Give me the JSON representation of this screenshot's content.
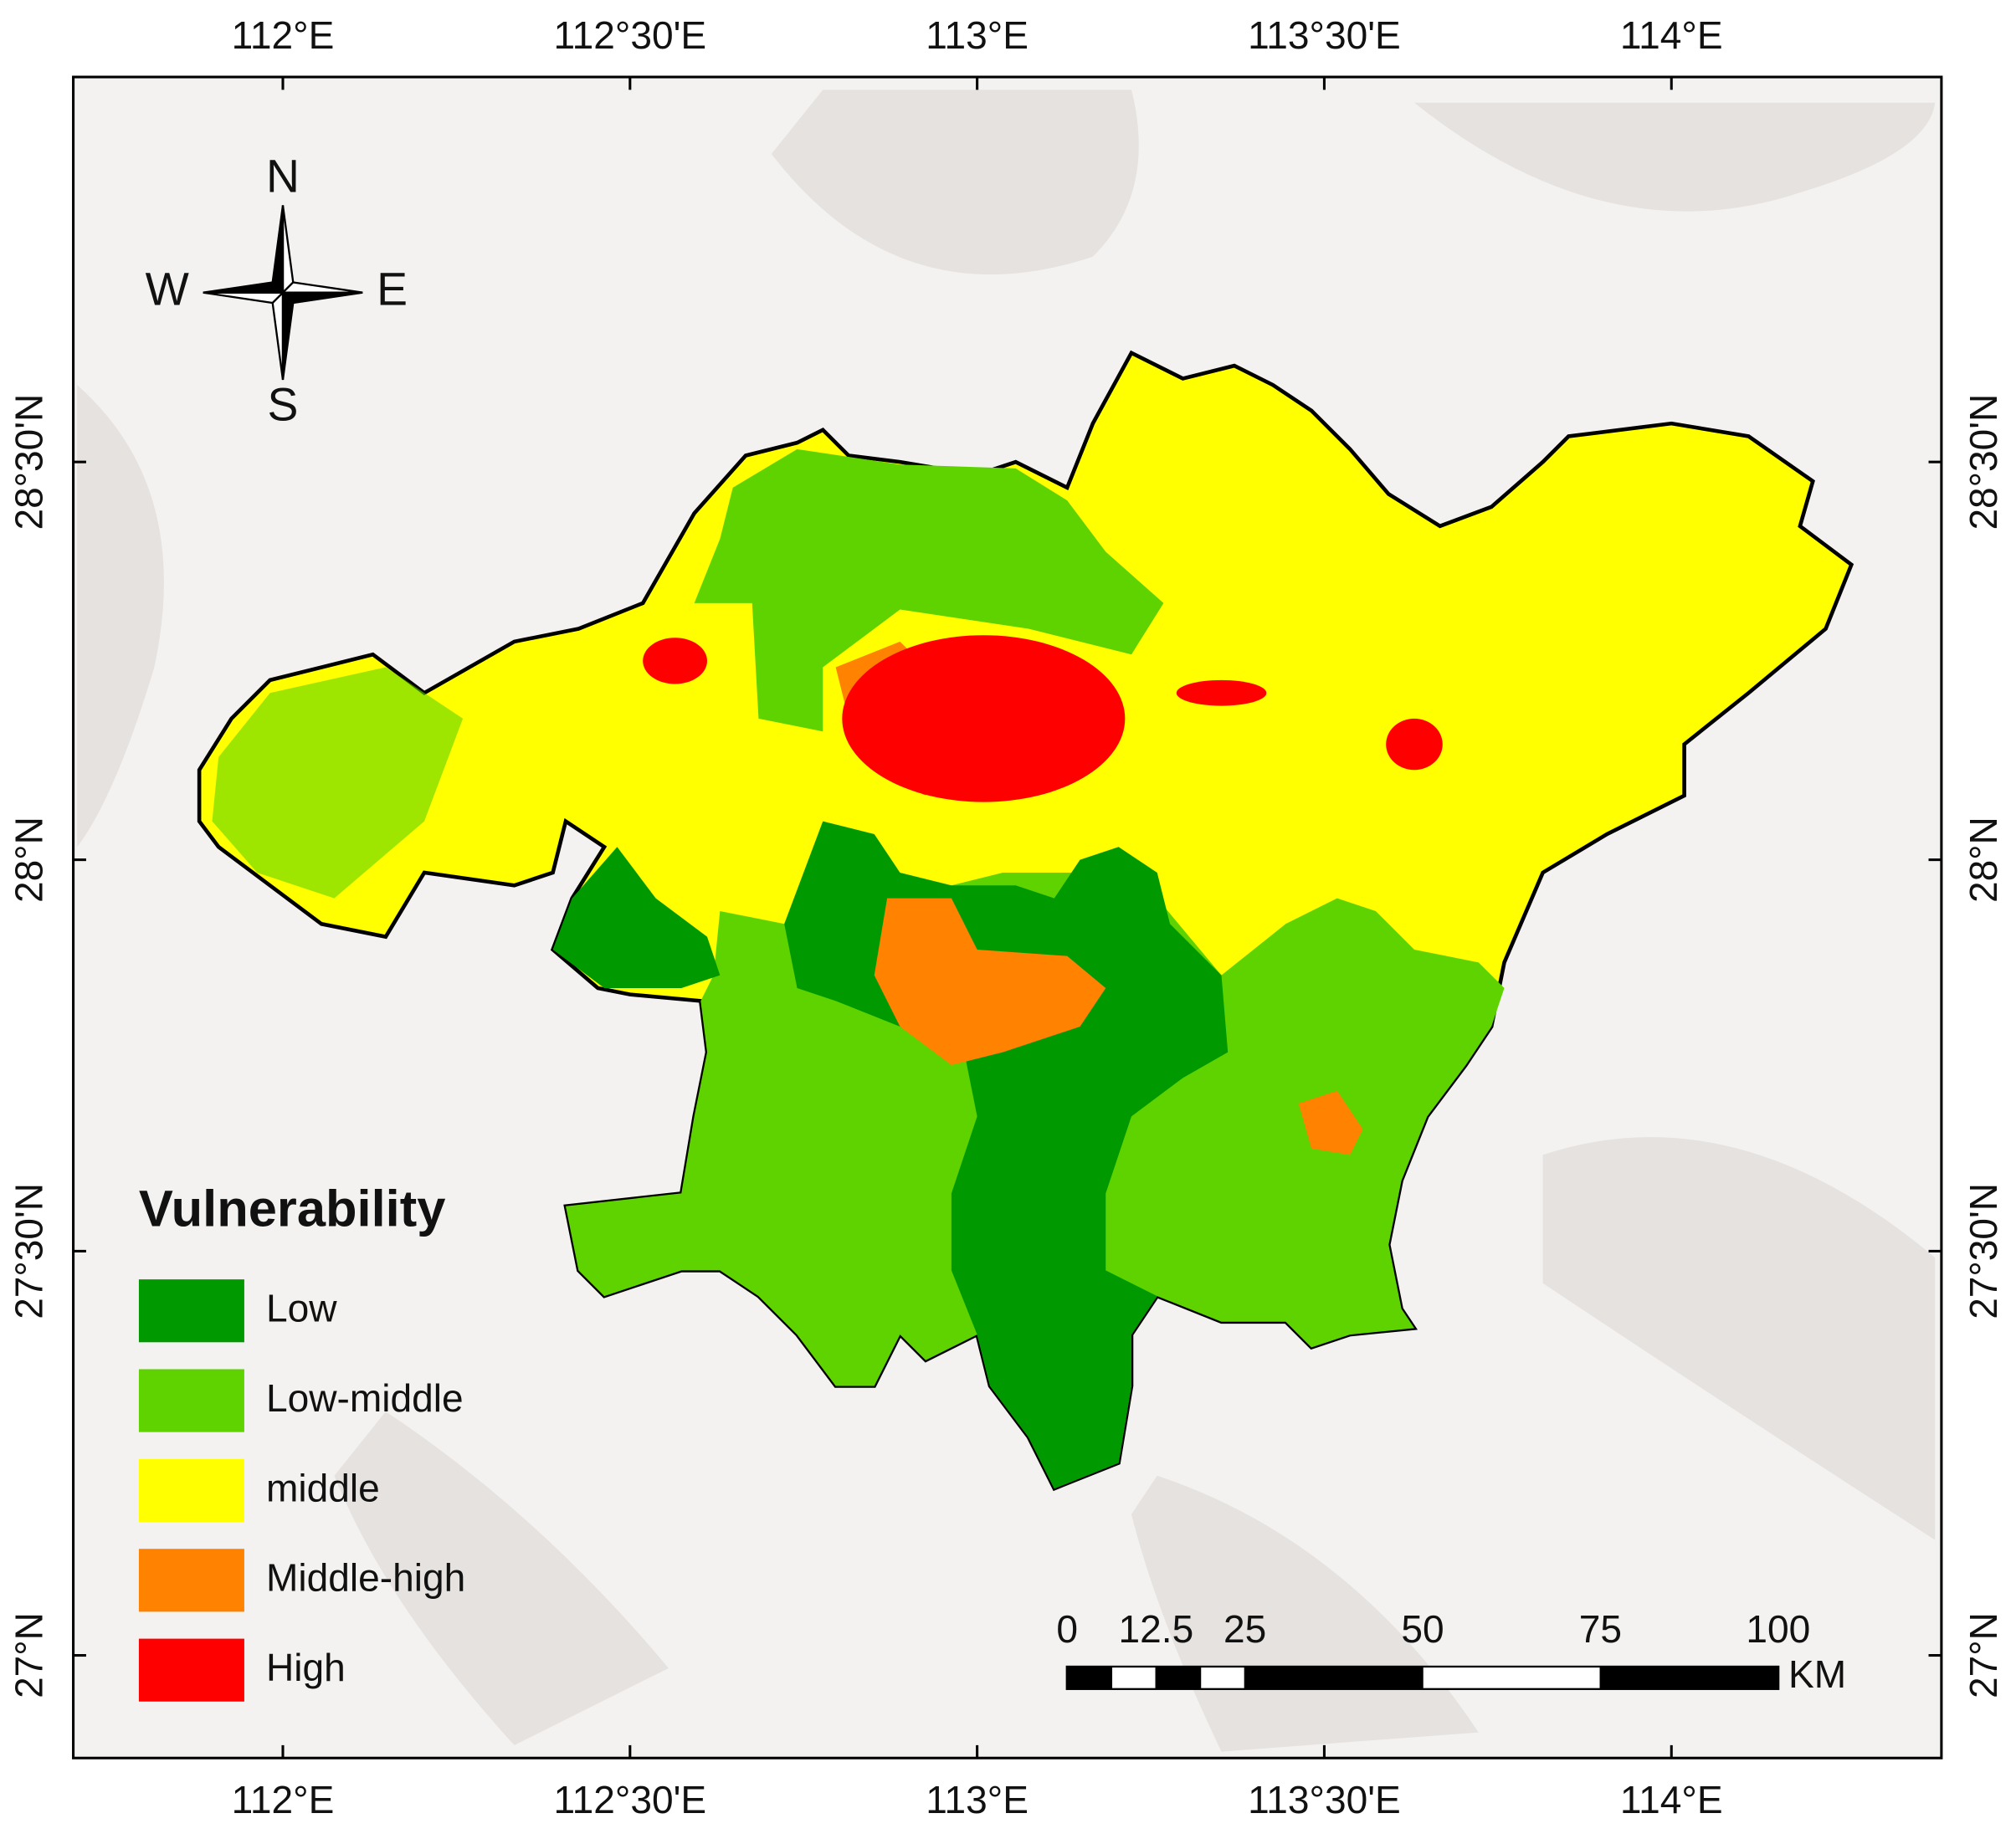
{
  "map": {
    "lon_labels": [
      "112°E",
      "112°30'E",
      "113°E",
      "113°30'E",
      "114°E"
    ],
    "lat_labels": [
      "28°30'N",
      "28°N",
      "27°30'N",
      "27°N"
    ],
    "compass": {
      "north": "N",
      "south": "S",
      "east": "E",
      "west": "W"
    },
    "legend": {
      "title": "Vulnerability",
      "items": [
        {
          "label": "Low",
          "color": "#009a00"
        },
        {
          "label": "Low-middle",
          "color": "#5ed300"
        },
        {
          "label": "middle",
          "color": "#ffff00"
        },
        {
          "label": "Middle-high",
          "color": "#ff8200"
        },
        {
          "label": "High",
          "color": "#ff0000"
        }
      ]
    },
    "scale_bar": {
      "ticks": [
        0,
        12.5,
        25,
        50,
        75,
        100
      ],
      "unit": "KM"
    }
  }
}
